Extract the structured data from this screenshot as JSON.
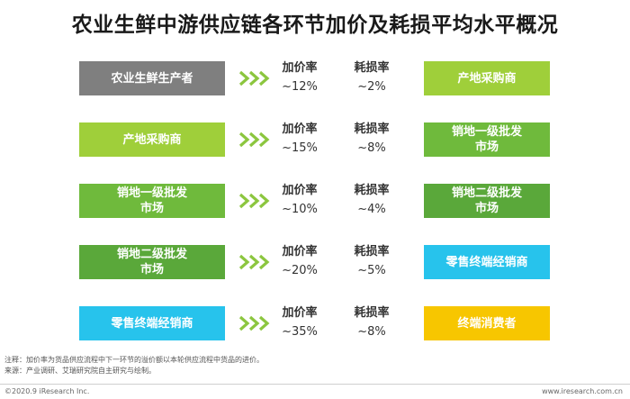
{
  "title": "农业生鲜中游供应链各环节加价及耗损平均水平概况",
  "colors": {
    "gray": "#7f7f7f",
    "lime": "#9fcf3a",
    "green": "#6fba3c",
    "darkgreen": "#5aa83a",
    "cyan": "#27c3ec",
    "yellow": "#f7c600",
    "arrow": "#8cc63f"
  },
  "rows": [
    {
      "from": "农业生鲜生产者",
      "from_color": "gray",
      "markup_label": "加价率",
      "markup": "~12%",
      "loss_label": "耗损率",
      "loss": "~2%",
      "to": "产地采购商",
      "to_color": "lime"
    },
    {
      "from": "产地采购商",
      "from_color": "lime",
      "markup_label": "加价率",
      "markup": "~15%",
      "loss_label": "耗损率",
      "loss": "~8%",
      "to": "销地一级批发\n市场",
      "to_color": "green"
    },
    {
      "from": "销地一级批发\n市场",
      "from_color": "green",
      "markup_label": "加价率",
      "markup": "~10%",
      "loss_label": "耗损率",
      "loss": "~4%",
      "to": "销地二级批发\n市场",
      "to_color": "darkgreen"
    },
    {
      "from": "销地二级批发\n市场",
      "from_color": "darkgreen",
      "markup_label": "加价率",
      "markup": "~20%",
      "loss_label": "耗损率",
      "loss": "~5%",
      "to": "零售终端经销商",
      "to_color": "cyan"
    },
    {
      "from": "零售终端经销商",
      "from_color": "cyan",
      "markup_label": "加价率",
      "markup": "~35%",
      "loss_label": "耗损率",
      "loss": "~8%",
      "to": "终端消费者",
      "to_color": "yellow"
    }
  ],
  "notes": {
    "note": "注释：加价率为货品供应流程中下一环节的溢价额以本轮供应流程中货品的进价。",
    "source": "来源：产业调研、艾瑞研究院自主研究与绘制。"
  },
  "footer": {
    "copyright": "©2020.9 iResearch Inc.",
    "website": "www.iresearch.com.cn"
  }
}
